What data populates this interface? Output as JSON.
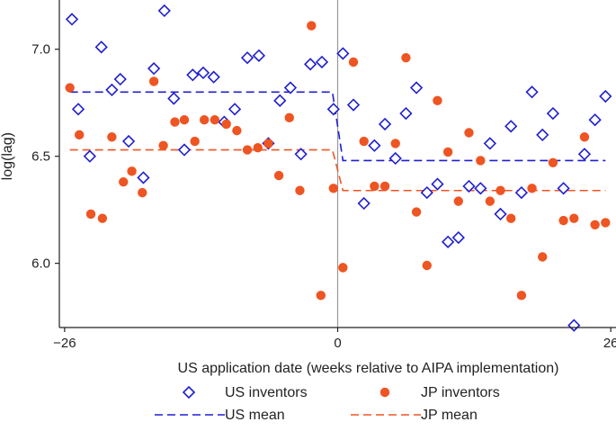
{
  "chart_data": {
    "type": "scatter",
    "xlabel": "US application date (weeks relative to AIPA implementation)",
    "ylabel": "log(lag)",
    "xlim": [
      -26.5,
      26.5
    ],
    "ylim": [
      5.7,
      7.23
    ],
    "xticks": [
      -26,
      0,
      26
    ],
    "xtick_labels": [
      "−26",
      "0",
      "26"
    ],
    "yticks": [
      6.0,
      6.5,
      7.0
    ],
    "ytick_labels": [
      "6.0",
      "6.5",
      "7.0"
    ],
    "cutoff_x": 0,
    "grid": false,
    "legend_position": "bottom",
    "series": [
      {
        "name": "US inventors",
        "kind": "scatter",
        "marker": "open-diamond",
        "color": "#1f1fd0",
        "points": [
          [
            -25.3,
            7.14
          ],
          [
            -24.7,
            6.72
          ],
          [
            -23.6,
            6.5
          ],
          [
            -22.5,
            7.01
          ],
          [
            -21.5,
            6.81
          ],
          [
            -20.7,
            6.86
          ],
          [
            -19.9,
            6.57
          ],
          [
            -18.5,
            6.4
          ],
          [
            -17.5,
            6.91
          ],
          [
            -16.5,
            7.18
          ],
          [
            -15.6,
            6.77
          ],
          [
            -14.6,
            6.53
          ],
          [
            -13.8,
            6.88
          ],
          [
            -12.8,
            6.89
          ],
          [
            -11.8,
            6.87
          ],
          [
            -10.8,
            6.66
          ],
          [
            -9.8,
            6.72
          ],
          [
            -8.6,
            6.96
          ],
          [
            -7.5,
            6.97
          ],
          [
            -6.6,
            6.56
          ],
          [
            -5.5,
            6.76
          ],
          [
            -4.5,
            6.82
          ],
          [
            -3.5,
            6.51
          ],
          [
            -2.6,
            6.93
          ],
          [
            -1.5,
            6.94
          ],
          [
            -0.4,
            6.72
          ],
          [
            0.5,
            6.98
          ],
          [
            1.5,
            6.74
          ],
          [
            2.5,
            6.28
          ],
          [
            3.5,
            6.55
          ],
          [
            4.5,
            6.65
          ],
          [
            5.5,
            6.49
          ],
          [
            6.5,
            6.7
          ],
          [
            7.5,
            6.82
          ],
          [
            8.5,
            6.33
          ],
          [
            9.5,
            6.37
          ],
          [
            10.5,
            6.1
          ],
          [
            11.5,
            6.12
          ],
          [
            12.5,
            6.36
          ],
          [
            13.6,
            6.35
          ],
          [
            14.5,
            6.56
          ],
          [
            15.5,
            6.23
          ],
          [
            16.5,
            6.64
          ],
          [
            17.5,
            6.33
          ],
          [
            18.5,
            6.8
          ],
          [
            19.5,
            6.6
          ],
          [
            20.5,
            6.7
          ],
          [
            21.5,
            6.35
          ],
          [
            22.5,
            5.71
          ],
          [
            23.5,
            6.51
          ],
          [
            24.5,
            6.67
          ],
          [
            25.5,
            6.78
          ]
        ]
      },
      {
        "name": "JP inventors",
        "kind": "scatter",
        "marker": "filled-circle",
        "color": "#ee5522",
        "points": [
          [
            -25.5,
            6.82
          ],
          [
            -24.6,
            6.6
          ],
          [
            -23.5,
            6.23
          ],
          [
            -22.4,
            6.21
          ],
          [
            -21.5,
            6.59
          ],
          [
            -20.4,
            6.38
          ],
          [
            -19.6,
            6.43
          ],
          [
            -18.6,
            6.33
          ],
          [
            -17.5,
            6.85
          ],
          [
            -16.6,
            6.55
          ],
          [
            -15.5,
            6.66
          ],
          [
            -14.6,
            6.67
          ],
          [
            -13.6,
            6.57
          ],
          [
            -12.7,
            6.67
          ],
          [
            -11.7,
            6.67
          ],
          [
            -10.6,
            6.65
          ],
          [
            -9.6,
            6.62
          ],
          [
            -8.6,
            6.53
          ],
          [
            -7.6,
            6.54
          ],
          [
            -6.6,
            6.56
          ],
          [
            -5.6,
            6.41
          ],
          [
            -4.6,
            6.68
          ],
          [
            -3.6,
            6.34
          ],
          [
            -2.5,
            7.11
          ],
          [
            -1.6,
            5.85
          ],
          [
            -0.4,
            6.35
          ],
          [
            0.5,
            5.98
          ],
          [
            1.5,
            6.94
          ],
          [
            2.5,
            6.57
          ],
          [
            3.5,
            6.36
          ],
          [
            4.5,
            6.36
          ],
          [
            5.5,
            6.56
          ],
          [
            6.5,
            6.96
          ],
          [
            7.5,
            6.24
          ],
          [
            8.5,
            5.99
          ],
          [
            9.5,
            6.76
          ],
          [
            10.5,
            6.52
          ],
          [
            11.5,
            6.29
          ],
          [
            12.5,
            6.61
          ],
          [
            13.6,
            6.48
          ],
          [
            14.5,
            6.29
          ],
          [
            15.5,
            6.34
          ],
          [
            16.5,
            6.21
          ],
          [
            17.5,
            5.85
          ],
          [
            18.5,
            6.35
          ],
          [
            19.5,
            6.03
          ],
          [
            20.5,
            6.47
          ],
          [
            21.5,
            6.2
          ],
          [
            22.5,
            6.21
          ],
          [
            23.5,
            6.59
          ],
          [
            24.5,
            6.18
          ],
          [
            25.5,
            6.19
          ]
        ]
      },
      {
        "name": "US mean",
        "kind": "line",
        "style": "dashed",
        "color": "#1f1fd0",
        "points": [
          [
            -25.5,
            6.8
          ],
          [
            -0.5,
            6.8
          ],
          [
            0.5,
            6.48
          ],
          [
            25.5,
            6.48
          ]
        ]
      },
      {
        "name": "JP mean",
        "kind": "line",
        "style": "dashed",
        "color": "#ee5522",
        "points": [
          [
            -25.5,
            6.53
          ],
          [
            -0.5,
            6.53
          ],
          [
            0.5,
            6.34
          ],
          [
            25.5,
            6.34
          ]
        ]
      }
    ]
  }
}
